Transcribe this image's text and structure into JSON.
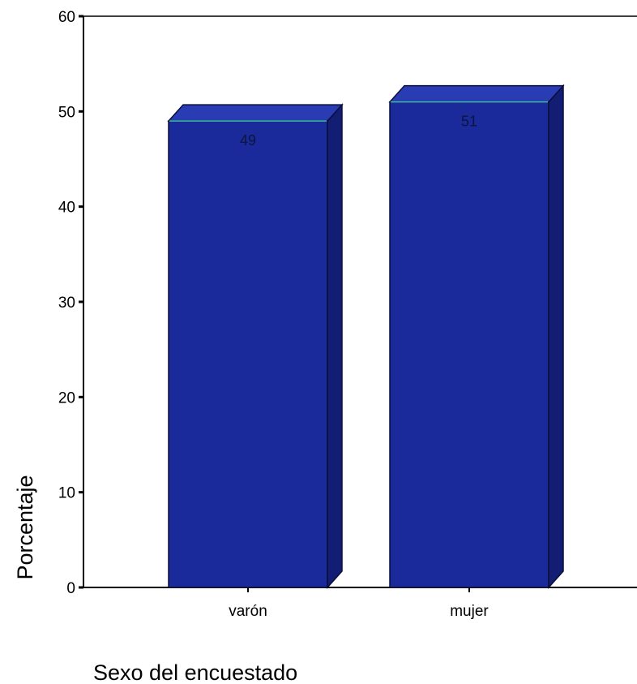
{
  "chart_data": {
    "type": "bar",
    "categories": [
      "varón",
      "mujer"
    ],
    "values": [
      49,
      51
    ],
    "data_labels": [
      "49",
      "51"
    ],
    "xlabel": "Sexo del encuestado",
    "ylabel": "Porcentaje",
    "ylim": [
      0,
      60
    ],
    "yticks": [
      0,
      10,
      20,
      30,
      40,
      50,
      60
    ],
    "grid": false,
    "legend": "none",
    "style": "3d-bars",
    "colors": {
      "bar_front": "#1a2a9a",
      "bar_side": "#121d73",
      "bar_top": "#2a3cb4",
      "bar_edge": "#0a0f3a",
      "top_highlight": "#3fbfa6"
    }
  }
}
